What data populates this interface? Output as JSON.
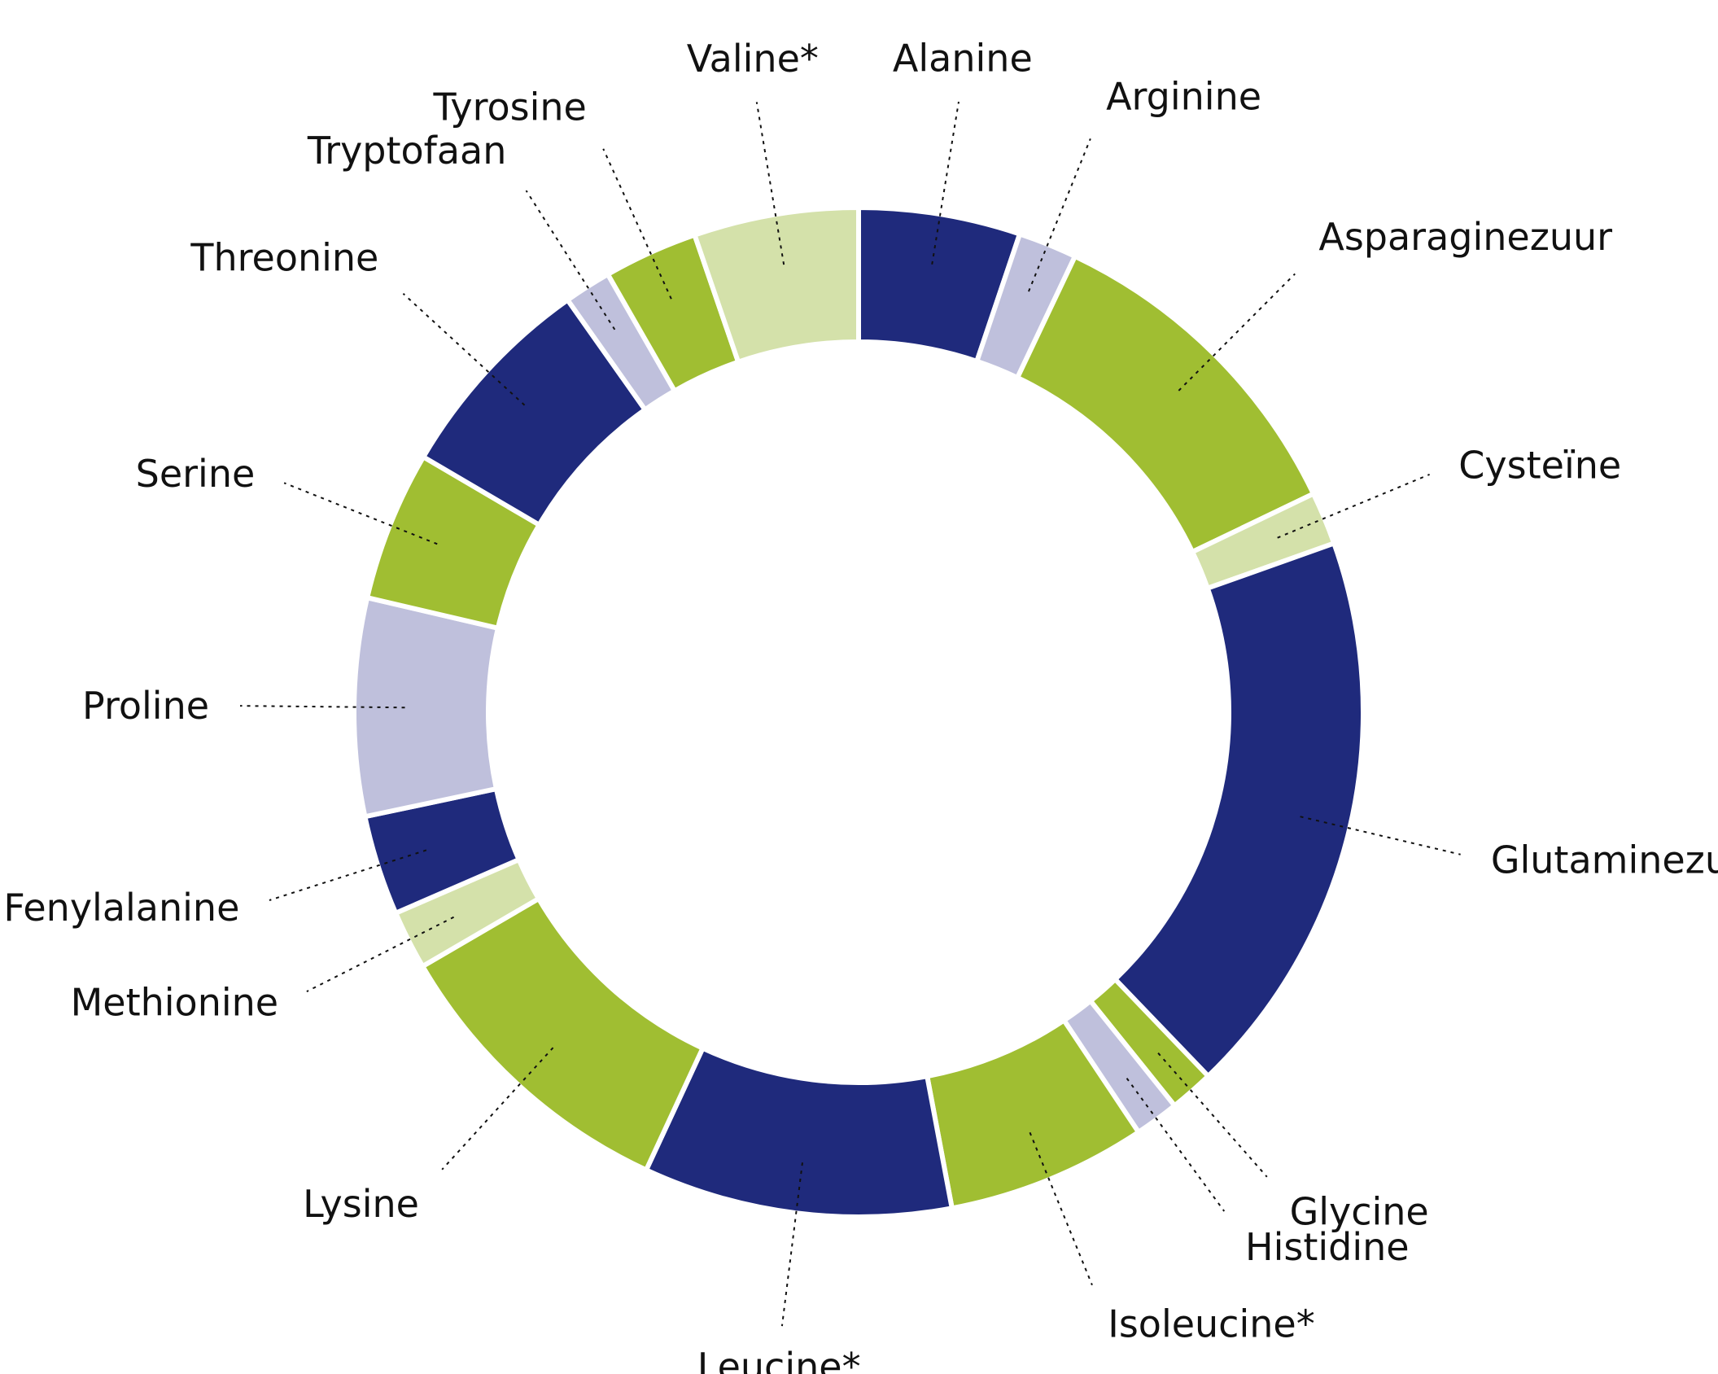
{
  "chart_data": {
    "type": "pie",
    "variant": "donut",
    "slices": [
      {
        "label": "Alanine",
        "value": 5.5,
        "color": "#1f2a7c"
      },
      {
        "label": "Arginine",
        "value": 2.0,
        "color": "#bfc0dc"
      },
      {
        "label": "Asparaginezuur",
        "value": 11.5,
        "color": "#a0be32"
      },
      {
        "label": "Cysteïne",
        "value": 1.8,
        "color": "#d4e1aa"
      },
      {
        "label": "Glutaminezuur",
        "value": 19.4,
        "color": "#1f2a7c"
      },
      {
        "label": "Glycine",
        "value": 1.5,
        "color": "#a0be32"
      },
      {
        "label": "Histidine",
        "value": 1.5,
        "color": "#bfc0dc"
      },
      {
        "label": "Isoleucine*",
        "value": 6.8,
        "color": "#a0be32"
      },
      {
        "label": "Leucine*",
        "value": 10.5,
        "color": "#1f2a7c"
      },
      {
        "label": "Lysine",
        "value": 10.3,
        "color": "#a0be32"
      },
      {
        "label": "Methionine",
        "value": 2.0,
        "color": "#d4e1aa"
      },
      {
        "label": "Fenylalanine",
        "value": 3.4,
        "color": "#1f2a7c"
      },
      {
        "label": "Proline",
        "value": 7.4,
        "color": "#bfc0dc"
      },
      {
        "label": "Serine",
        "value": 5.1,
        "color": "#a0be32"
      },
      {
        "label": "Threonine",
        "value": 7.2,
        "color": "#1f2a7c"
      },
      {
        "label": "Tryptofaan",
        "value": 1.6,
        "color": "#bfc0dc"
      },
      {
        "label": "Tyrosine",
        "value": 3.2,
        "color": "#a0be32"
      },
      {
        "label": "Valine*",
        "value": 5.6,
        "color": "#d4e1aa"
      }
    ],
    "start_angle_deg": 0,
    "direction": "clockwise",
    "legend": "none"
  }
}
